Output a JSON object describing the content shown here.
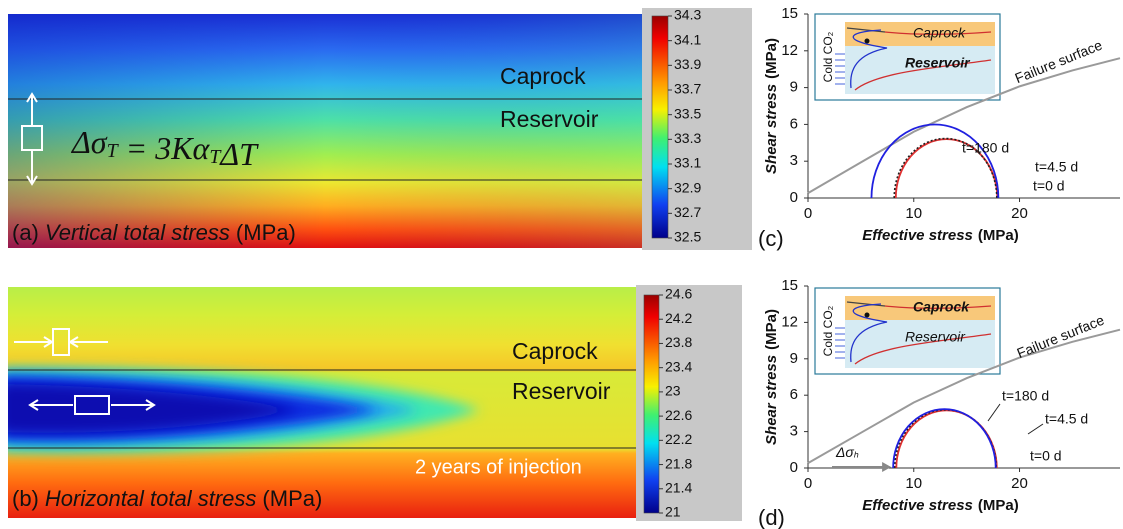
{
  "chart_data": [
    {
      "type": "contour",
      "panel": "(a)",
      "title": "Vertical total stress",
      "unit": "(MPa)",
      "labels": [
        "Caprock",
        "Reservoir"
      ],
      "equation": [
        {
          "text": "Δσ",
          "sub": "T"
        },
        {
          "text": " = 3Kα",
          "sub": "T"
        },
        {
          "text": "ΔT"
        }
      ],
      "colorbar": {
        "lim": [
          32.5,
          34.3
        ],
        "ticks": [
          32.5,
          32.7,
          32.9,
          33.1,
          33.3,
          33.5,
          33.7,
          33.9,
          34.1,
          34.3
        ]
      }
    },
    {
      "type": "contour",
      "panel": "(b)",
      "title": "Horizontal total stress",
      "unit": "(MPa)",
      "labels": [
        "Caprock",
        "Reservoir"
      ],
      "note": "2 years of injection",
      "colorbar": {
        "lim": [
          21,
          24.6
        ],
        "ticks": [
          21,
          21.4,
          21.8,
          22.2,
          22.6,
          23,
          23.4,
          23.8,
          24.2,
          24.6
        ]
      }
    },
    {
      "type": "mohr",
      "panel": "(c)",
      "xlabel": "Effective stress",
      "xunit": "(MPa)",
      "ylabel": "Shear stress",
      "yunit": "(MPa)",
      "xlim": [
        0,
        29.5
      ],
      "ylim": [
        0,
        15
      ],
      "xticks": [
        0,
        10,
        20
      ],
      "yticks": [
        0,
        3,
        6,
        9,
        12,
        15
      ],
      "failure_surface": {
        "name": "Failure surface",
        "color": "#9a9a9a",
        "x": [
          0,
          5,
          10,
          15,
          20,
          25,
          29.5
        ],
        "y": [
          0.4,
          2.9,
          5.4,
          7.4,
          9.1,
          10.4,
          11.4
        ]
      },
      "series": [
        {
          "name": "t=0 d",
          "color": "#e03030",
          "center": 13.1,
          "radius": 4.8,
          "dashed": false
        },
        {
          "name": "t=4.5 d",
          "color": "#222222",
          "center": 13.0,
          "radius": 4.85,
          "dashed": true
        },
        {
          "name": "t=180 d",
          "color": "#2020e0",
          "center": 12.0,
          "radius": 6.0,
          "dashed": false
        }
      ],
      "inset": {
        "labels": [
          "Cold CO₂",
          "Caprock",
          "Reservoir"
        ]
      }
    },
    {
      "type": "mohr",
      "panel": "(d)",
      "xlabel": "Effective stress",
      "xunit": "(MPa)",
      "ylabel": "Shear stress",
      "yunit": "(MPa)",
      "xlim": [
        0,
        29.5
      ],
      "ylim": [
        0,
        15
      ],
      "xticks": [
        0,
        10,
        20
      ],
      "yticks": [
        0,
        3,
        6,
        9,
        12,
        15
      ],
      "failure_surface": {
        "name": "Failure surface",
        "color": "#9a9a9a",
        "x": [
          0,
          5,
          10,
          15,
          20,
          25,
          29.5
        ],
        "y": [
          0.4,
          2.9,
          5.4,
          7.4,
          9.1,
          10.4,
          11.4
        ]
      },
      "series": [
        {
          "name": "t=0 d",
          "color": "#e03030",
          "center": 13.1,
          "radius": 4.75,
          "dashed": false
        },
        {
          "name": "t=4.5 d",
          "color": "#222222",
          "center": 13.0,
          "radius": 4.8,
          "dashed": true
        },
        {
          "name": "t=180 d",
          "color": "#2020e0",
          "center": 12.9,
          "radius": 4.85,
          "dashed": false
        }
      ],
      "inset": {
        "labels": [
          "Cold CO₂",
          "Caprock",
          "Reservoir"
        ]
      },
      "arrow_label": [
        {
          "text": "Δσ",
          "sub": "h"
        }
      ]
    }
  ]
}
